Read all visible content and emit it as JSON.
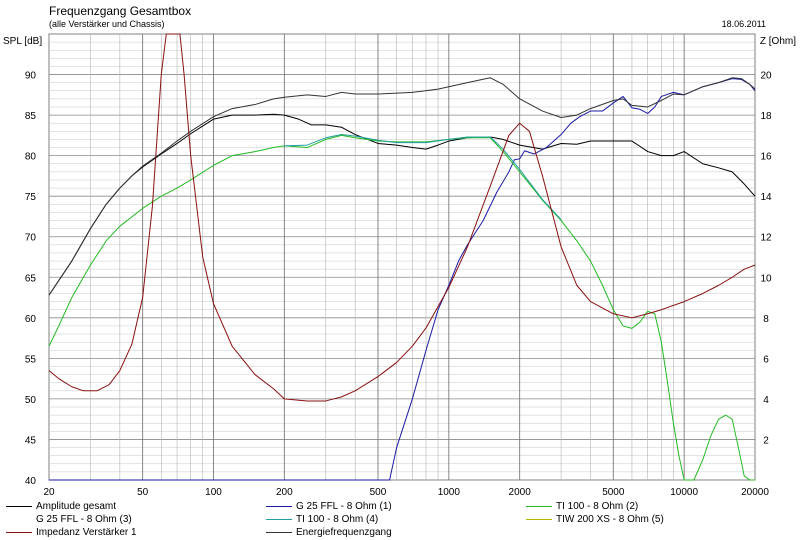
{
  "header": {
    "title": "Frequenzgang Gesamtbox",
    "subtitle": "(alle Verstärker und Chassis)",
    "date": "18.06.2011"
  },
  "axis_titles": {
    "left": "SPL [dB]",
    "right": "Z [Ohm]"
  },
  "legend": [
    {
      "label": "Amplitude gesamt",
      "color": "#000000"
    },
    {
      "label": "G 25 FFL - 8 Ohm (1)",
      "color": "#1a1aa6"
    },
    {
      "label": "TI 100 - 8 Ohm (2)",
      "color": "#22bb22"
    },
    {
      "label": "G 25 FFL - 8 Ohm (3)",
      "color": "#ffffff"
    },
    {
      "label": "TI 100 - 8 Ohm (4)",
      "color": "#22a0a0"
    },
    {
      "label": "TIW 200 XS - 8 Ohm (5)",
      "color": "#b8b800"
    },
    {
      "label": "Impedanz Verstärker 1",
      "color": "#8b1010"
    },
    {
      "label": "Energiefrequenzgang",
      "color": "#333333"
    }
  ],
  "chart_data": {
    "type": "line",
    "x_scale": "log",
    "xlim": [
      20,
      20000
    ],
    "ylim_left": [
      40,
      95
    ],
    "ylim_right": [
      0,
      22
    ],
    "x_ticks": [
      "20",
      "50",
      "100",
      "200",
      "500",
      "1000",
      "2000",
      "5000",
      "10000",
      "20000"
    ],
    "y_ticks_left": [
      "40",
      "45",
      "50",
      "55",
      "60",
      "65",
      "70",
      "75",
      "80",
      "85",
      "90"
    ],
    "y_ticks_right": [
      "2",
      "4",
      "6",
      "8",
      "10",
      "12",
      "14",
      "16",
      "18",
      "20"
    ],
    "grid": true,
    "series": [
      {
        "name": "Amplitude gesamt",
        "color": "#000000",
        "axis": "left",
        "points": [
          [
            20,
            62.8
          ],
          [
            25,
            67
          ],
          [
            30,
            71
          ],
          [
            35,
            74
          ],
          [
            40,
            76
          ],
          [
            45,
            77.5
          ],
          [
            50,
            78.6
          ],
          [
            60,
            80.2
          ],
          [
            70,
            81.5
          ],
          [
            80,
            82.7
          ],
          [
            100,
            84.5
          ],
          [
            120,
            85
          ],
          [
            150,
            85
          ],
          [
            180,
            85.1
          ],
          [
            200,
            85
          ],
          [
            230,
            84.5
          ],
          [
            260,
            83.8
          ],
          [
            300,
            83.8
          ],
          [
            350,
            83.5
          ],
          [
            400,
            82.6
          ],
          [
            500,
            81.5
          ],
          [
            600,
            81.3
          ],
          [
            700,
            81
          ],
          [
            800,
            80.8
          ],
          [
            900,
            81.3
          ],
          [
            1000,
            81.8
          ],
          [
            1200,
            82.2
          ],
          [
            1500,
            82.3
          ],
          [
            1700,
            82
          ],
          [
            2000,
            81.3
          ],
          [
            2500,
            80.8
          ],
          [
            3000,
            81.5
          ],
          [
            3500,
            81.4
          ],
          [
            4000,
            81.8
          ],
          [
            5000,
            81.8
          ],
          [
            6000,
            81.8
          ],
          [
            7000,
            80.5
          ],
          [
            8000,
            80
          ],
          [
            9000,
            80
          ],
          [
            10000,
            80.5
          ],
          [
            12000,
            79
          ],
          [
            14000,
            78.5
          ],
          [
            16000,
            78
          ],
          [
            18000,
            76.5
          ],
          [
            20000,
            75
          ]
        ]
      },
      {
        "name": "G 25 FFL - 8 Ohm (1)",
        "color": "#1a1aa6",
        "axis": "left",
        "points": [
          [
            20,
            40
          ],
          [
            560,
            40
          ],
          [
            600,
            44
          ],
          [
            700,
            50
          ],
          [
            800,
            56
          ],
          [
            900,
            61
          ],
          [
            1000,
            64
          ],
          [
            1100,
            67
          ],
          [
            1200,
            69
          ],
          [
            1400,
            72
          ],
          [
            1600,
            75.5
          ],
          [
            1800,
            78
          ],
          [
            1900,
            79.5
          ],
          [
            2000,
            79.6
          ],
          [
            2100,
            80.6
          ],
          [
            2300,
            80.2
          ],
          [
            2600,
            81
          ],
          [
            3000,
            82.6
          ],
          [
            3300,
            84
          ],
          [
            3600,
            84.8
          ],
          [
            4000,
            85.5
          ],
          [
            4500,
            85.5
          ],
          [
            5000,
            86.5
          ],
          [
            5500,
            87.3
          ],
          [
            6000,
            85.9
          ],
          [
            6500,
            85.7
          ],
          [
            7000,
            85.2
          ],
          [
            7500,
            86
          ],
          [
            8000,
            87.3
          ],
          [
            9000,
            87.8
          ],
          [
            10000,
            87.5
          ],
          [
            12000,
            88.5
          ],
          [
            14000,
            89
          ],
          [
            16000,
            89.5
          ],
          [
            17500,
            89.4
          ],
          [
            19000,
            88.8
          ],
          [
            20000,
            88
          ]
        ]
      },
      {
        "name": "TI 100 - 8 Ohm (2)",
        "color": "#22bb22",
        "axis": "left",
        "points": [
          [
            20,
            56.5
          ],
          [
            22,
            59
          ],
          [
            25,
            62.5
          ],
          [
            30,
            66.5
          ],
          [
            35,
            69.5
          ],
          [
            40,
            71.3
          ],
          [
            50,
            73.5
          ],
          [
            60,
            75
          ],
          [
            70,
            76
          ],
          [
            80,
            77
          ],
          [
            100,
            78.8
          ],
          [
            120,
            80
          ],
          [
            150,
            80.5
          ],
          [
            180,
            81
          ],
          [
            200,
            81.2
          ],
          [
            250,
            81
          ],
          [
            300,
            82
          ],
          [
            350,
            82.5
          ],
          [
            400,
            82.2
          ],
          [
            500,
            81.8
          ],
          [
            600,
            81.7
          ],
          [
            800,
            81.7
          ],
          [
            1000,
            82
          ],
          [
            1200,
            82.2
          ],
          [
            1500,
            82.2
          ],
          [
            1700,
            80.5
          ],
          [
            2000,
            78
          ],
          [
            2500,
            74.5
          ],
          [
            3000,
            72
          ],
          [
            3500,
            69.5
          ],
          [
            4000,
            67
          ],
          [
            4500,
            64
          ],
          [
            5000,
            61
          ],
          [
            5500,
            59
          ],
          [
            6000,
            58.7
          ],
          [
            6500,
            59.5
          ],
          [
            7000,
            60.8
          ],
          [
            7500,
            60.5
          ],
          [
            8000,
            57
          ],
          [
            8500,
            52
          ],
          [
            9000,
            47
          ],
          [
            9500,
            43
          ],
          [
            10000,
            40
          ],
          [
            11000,
            40
          ],
          [
            12000,
            42.5
          ],
          [
            13000,
            45.5
          ],
          [
            14000,
            47.5
          ],
          [
            15000,
            48
          ],
          [
            16000,
            47.5
          ],
          [
            17000,
            44
          ],
          [
            18000,
            40.5
          ],
          [
            19000,
            40
          ],
          [
            20000,
            40
          ]
        ]
      },
      {
        "name": "TI 100 - 8 Ohm (4)",
        "color": "#22a0a0",
        "axis": "left",
        "points": [
          [
            200,
            81.2
          ],
          [
            250,
            81.3
          ],
          [
            300,
            82.2
          ],
          [
            350,
            82.6
          ],
          [
            400,
            82.4
          ],
          [
            500,
            81.9
          ],
          [
            600,
            81.6
          ],
          [
            800,
            81.6
          ],
          [
            1000,
            82
          ],
          [
            1200,
            82.3
          ],
          [
            1500,
            82.3
          ],
          [
            1700,
            80.8
          ],
          [
            2000,
            78.3
          ],
          [
            2500,
            74.6
          ],
          [
            3000,
            72.1
          ]
        ]
      },
      {
        "name": "Impedanz Verstärker 1",
        "color": "#8b1010",
        "axis": "right",
        "points": [
          [
            20,
            5.4
          ],
          [
            22,
            5
          ],
          [
            25,
            4.6
          ],
          [
            28,
            4.4
          ],
          [
            32,
            4.4
          ],
          [
            36,
            4.7
          ],
          [
            40,
            5.4
          ],
          [
            45,
            6.7
          ],
          [
            50,
            9
          ],
          [
            55,
            13.5
          ],
          [
            60,
            20
          ],
          [
            63,
            22
          ],
          [
            72,
            22
          ],
          [
            75,
            20
          ],
          [
            80,
            16
          ],
          [
            90,
            11
          ],
          [
            100,
            8.7
          ],
          [
            120,
            6.6
          ],
          [
            150,
            5.2
          ],
          [
            180,
            4.5
          ],
          [
            200,
            4
          ],
          [
            250,
            3.9
          ],
          [
            300,
            3.9
          ],
          [
            350,
            4.1
          ],
          [
            400,
            4.4
          ],
          [
            500,
            5.1
          ],
          [
            600,
            5.8
          ],
          [
            700,
            6.6
          ],
          [
            800,
            7.5
          ],
          [
            1000,
            9.5
          ],
          [
            1200,
            11.5
          ],
          [
            1500,
            14.5
          ],
          [
            1800,
            17
          ],
          [
            2000,
            17.6
          ],
          [
            2200,
            17.2
          ],
          [
            2500,
            15
          ],
          [
            3000,
            11.5
          ],
          [
            3500,
            9.6
          ],
          [
            4000,
            8.8
          ],
          [
            5000,
            8.2
          ],
          [
            6000,
            8
          ],
          [
            7000,
            8.2
          ],
          [
            8000,
            8.4
          ],
          [
            10000,
            8.8
          ],
          [
            12000,
            9.2
          ],
          [
            14000,
            9.6
          ],
          [
            16000,
            10
          ],
          [
            18000,
            10.4
          ],
          [
            20000,
            10.6
          ]
        ]
      },
      {
        "name": "Energiefrequenzgang",
        "color": "#333333",
        "axis": "left",
        "points": [
          [
            20,
            62.8
          ],
          [
            25,
            67
          ],
          [
            30,
            71
          ],
          [
            35,
            74
          ],
          [
            40,
            76
          ],
          [
            45,
            77.5
          ],
          [
            50,
            78.7
          ],
          [
            60,
            80.3
          ],
          [
            70,
            81.8
          ],
          [
            80,
            83
          ],
          [
            100,
            84.8
          ],
          [
            120,
            85.8
          ],
          [
            150,
            86.3
          ],
          [
            180,
            87
          ],
          [
            200,
            87.2
          ],
          [
            250,
            87.5
          ],
          [
            300,
            87.3
          ],
          [
            350,
            87.8
          ],
          [
            400,
            87.6
          ],
          [
            500,
            87.6
          ],
          [
            700,
            87.8
          ],
          [
            900,
            88.2
          ],
          [
            1200,
            89
          ],
          [
            1500,
            89.6
          ],
          [
            1700,
            88.8
          ],
          [
            2000,
            87
          ],
          [
            2500,
            85.5
          ],
          [
            3000,
            84.7
          ],
          [
            3500,
            85
          ],
          [
            4000,
            85.8
          ],
          [
            5000,
            86.8
          ],
          [
            5500,
            87
          ],
          [
            6000,
            86.2
          ],
          [
            7000,
            86
          ],
          [
            8000,
            86.8
          ],
          [
            9000,
            87.6
          ],
          [
            10000,
            87.5
          ],
          [
            12000,
            88.5
          ],
          [
            14000,
            89
          ],
          [
            16000,
            89.6
          ],
          [
            17500,
            89.5
          ],
          [
            19000,
            88.8
          ],
          [
            20000,
            88.2
          ]
        ]
      }
    ]
  }
}
